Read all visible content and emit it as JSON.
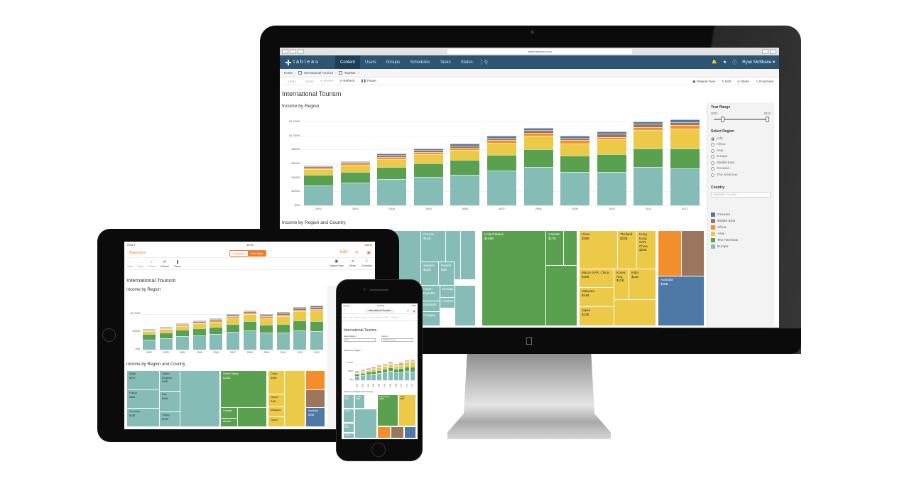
{
  "browser": {
    "url": "online.tableau.com"
  },
  "topnav": {
    "logo": "tableau",
    "items": [
      "Content",
      "Users",
      "Groups",
      "Schedules",
      "Tasks",
      "Status"
    ],
    "active": "Content",
    "user": "Ryan McShane ▾"
  },
  "breadcrumb": {
    "items": [
      "Home",
      "International Tourism",
      "Tourism"
    ]
  },
  "toolbar": {
    "undo": "Undo",
    "redo": "Redo",
    "revert": "Revert",
    "refresh": "Refresh",
    "pause": "Pause",
    "original_view": "Original View",
    "edit": "Edit",
    "share": "Share",
    "download": "Download"
  },
  "dashboard": {
    "title": "International Tourism",
    "chart_title": "Income by Region",
    "treemap_title": "Income by Region and Country"
  },
  "colors": {
    "Europe": "#86bcb6",
    "The Americas": "#59a14f",
    "Asia": "#edc948",
    "Africa": "#f28e2b",
    "Middle East": "#9c755f",
    "Oceania": "#4e79a7",
    "nav_bg": "#2b5572",
    "ios_accent": "#ef7d2c"
  },
  "filters": {
    "year_range": {
      "label": "Year Range",
      "min": "2001",
      "max": "2012"
    },
    "region": {
      "label": "Select Region",
      "options": [
        "(All)",
        "Africa",
        "Asia",
        "Europe",
        "Middle East",
        "Oceania",
        "The Americas"
      ],
      "selected": "(All)"
    },
    "country": {
      "label": "Country",
      "placeholder": "Highlight Country"
    },
    "legend": [
      "Oceania",
      "Middle East",
      "Africa",
      "Asia",
      "The Americas",
      "Europe"
    ]
  },
  "chart_data": {
    "type": "bar",
    "stacked": true,
    "title": "Income by Region",
    "xlabel": "",
    "ylabel": "",
    "ylim": [
      0,
      1200
    ],
    "yticks": [
      "$0B",
      "$200B",
      "$400B",
      "$600B",
      "$800B",
      "$1,000B",
      "$1,200B"
    ],
    "categories": [
      "2002",
      "2003",
      "2004",
      "2005",
      "2006",
      "2007",
      "2008",
      "2009",
      "2010",
      "2011",
      "2012"
    ],
    "series": [
      {
        "name": "Europe",
        "values": [
          285,
          325,
          375,
          405,
          440,
          500,
          550,
          480,
          480,
          545,
          530
        ]
      },
      {
        "name": "The Americas",
        "values": [
          150,
          155,
          175,
          195,
          210,
          225,
          250,
          230,
          250,
          270,
          280
        ]
      },
      {
        "name": "Asia",
        "values": [
          85,
          95,
          115,
          135,
          140,
          170,
          200,
          180,
          215,
          265,
          290
        ]
      },
      {
        "name": "Africa",
        "values": [
          20,
          22,
          28,
          28,
          30,
          40,
          40,
          42,
          35,
          40,
          45
        ]
      },
      {
        "name": "Middle East",
        "values": [
          20,
          22,
          28,
          30,
          35,
          35,
          40,
          35,
          50,
          45,
          50
        ]
      },
      {
        "name": "Oceania",
        "values": [
          15,
          17,
          20,
          22,
          25,
          25,
          30,
          28,
          25,
          35,
          40
        ]
      }
    ],
    "legend_position": "right",
    "grid": true
  },
  "treemap": {
    "europe": [
      {
        "country": "Greece",
        "value": "$14B"
      },
      {
        "country": "Sweden",
        "value": "$10B"
      },
      {
        "country": "Poland",
        "value": "$9B"
      },
      {
        "country": "Czech Republic",
        "value": ""
      },
      {
        "country": "Norway",
        "value": ""
      },
      {
        "country": "Ukraine",
        "value": ""
      },
      {
        "country": "Denmark",
        "value": ""
      },
      {
        "country": "Hungary",
        "value": ""
      }
    ],
    "americas": [
      {
        "country": "United States",
        "value": "$145B"
      },
      {
        "country": "Canada",
        "value": "$17B"
      }
    ],
    "asia": [
      {
        "country": "China",
        "value": "$38B"
      },
      {
        "country": "Thailand",
        "value": "$20B"
      },
      {
        "country": "Hong Kong SAR, China",
        "value": "$20B"
      },
      {
        "country": "Macao SAR, China",
        "value": "$18B"
      },
      {
        "country": "Korea, Rep.",
        "value": "$12B"
      },
      {
        "country": "India",
        "value": "$11B"
      },
      {
        "country": "Malaysia",
        "value": "$14B"
      },
      {
        "country": "Japan",
        "value": "$13B"
      }
    ],
    "oceania": [
      {
        "country": "Australia",
        "value": "$25B"
      }
    ]
  },
  "ipad": {
    "status_left": "iPad ▾",
    "time": "10:03",
    "battery": "100%",
    "back": "‹ Favorites",
    "segments": [
      "Snapshot",
      "Live View"
    ],
    "active_segment": "Live View",
    "edit": "Edit",
    "toolbar": [
      "Undo",
      "Redo",
      "Revert",
      "Refresh",
      "Pause"
    ],
    "toolbar_right": [
      "Original View",
      "Share",
      "Download"
    ],
    "ytick_labels": [
      "$0B",
      "$500B",
      "$1,000B"
    ],
    "treemap": [
      {
        "country": "Spain",
        "value": "$57B"
      },
      {
        "country": "United Kingdom",
        "value": "$43B"
      },
      {
        "country": "France",
        "value": "$56B"
      },
      {
        "country": "Italy",
        "value": "$43B"
      },
      {
        "country": "Germany",
        "value": "$44B"
      },
      {
        "country": "Turkey",
        "value": "$22B"
      },
      {
        "country": "United States",
        "value": "$145B"
      },
      {
        "country": "Canada",
        "value": ""
      },
      {
        "country": "Mexico",
        "value": ""
      },
      {
        "country": "China",
        "value": "$38B"
      },
      {
        "country": "Macao SAR,",
        "value": ""
      },
      {
        "country": "Malaysia",
        "value": ""
      },
      {
        "country": "Japan",
        "value": ""
      },
      {
        "country": "Australia",
        "value": "$25B"
      }
    ]
  },
  "iphone": {
    "status_left": "●●●●● ▾",
    "time": "9:41 AM",
    "battery": "100%",
    "title": "International Tourism",
    "toolbar": [
      "Undo",
      "Redo",
      "Revert",
      "Refresh",
      "Pause",
      "Subscribe",
      "Share",
      "Download"
    ],
    "region_label": "Select Region",
    "region_value": "(All)",
    "country_label": "Country",
    "country_placeholder": "Highlight Country",
    "ytick_labels": [
      "$0B",
      "$500B",
      "$1,000B"
    ],
    "treemap": [
      {
        "country": "Spain",
        "value": "$57B"
      },
      {
        "country": "France",
        "value": "$56B"
      },
      {
        "country": "United",
        "value": ""
      },
      {
        "country": "Italy",
        "value": "$43B"
      },
      {
        "country": "Turkey",
        "value": ""
      },
      {
        "country": "United States",
        "value": "$145B"
      },
      {
        "country": "China",
        "value": "$38B"
      }
    ]
  }
}
